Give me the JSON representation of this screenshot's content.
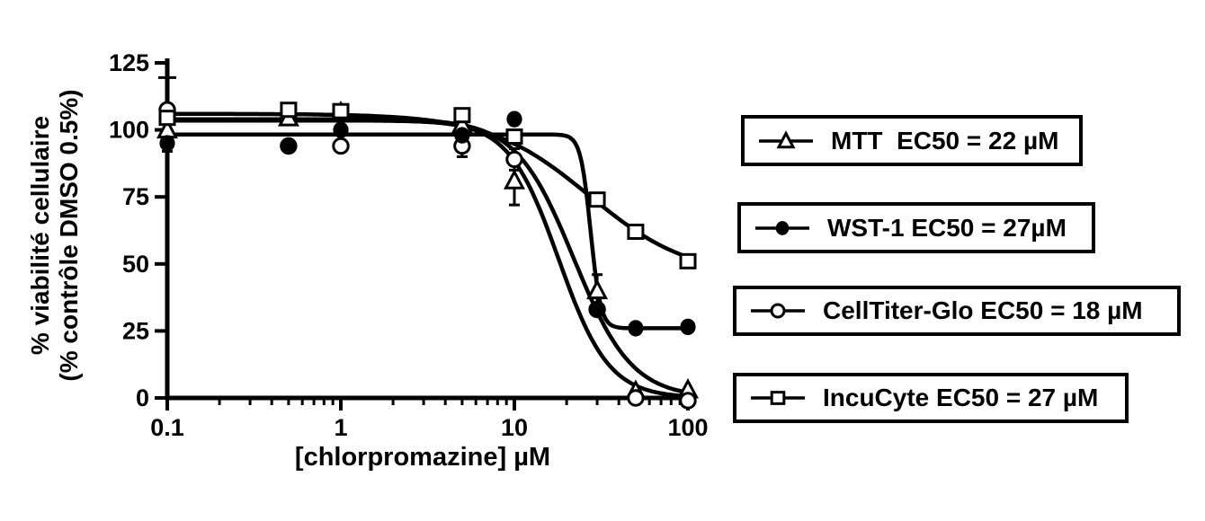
{
  "figure": {
    "background": "#ffffff",
    "ink_color": "#000000"
  },
  "chart_data": {
    "type": "line",
    "x_scale": "log",
    "grid": false,
    "title": "",
    "xlabel": "[chlorpromazine] µM",
    "ylabel_line1": "% viabilité cellulaire",
    "ylabel_line2": "(% contrôle DMSO 0.5%)",
    "xlim": [
      0.1,
      100
    ],
    "ylim": [
      0,
      125
    ],
    "x_ticks": [
      0.1,
      1,
      10,
      100
    ],
    "x_tick_labels": [
      "0.1",
      "1",
      "10",
      "100"
    ],
    "y_ticks": [
      0,
      25,
      50,
      75,
      100,
      125
    ],
    "y_tick_labels": [
      "0",
      "25",
      "50",
      "75",
      "100",
      "125"
    ],
    "y_minor_ticks": [
      119.5
    ],
    "x": [
      0.1,
      0.5,
      1,
      5,
      10,
      30,
      50,
      100
    ],
    "series": [
      {
        "name": "MTT",
        "marker": "triangle-open",
        "ec50_label": "MTT  EC50 = 22 µM",
        "ec50_um": 22,
        "values": [
          100,
          104.5,
          106.5,
          102,
          81,
          40,
          2.5,
          3
        ],
        "errors": [
          0,
          0,
          0,
          0,
          9,
          6,
          0,
          0
        ],
        "fit": {
          "top": 104,
          "bottom": 0,
          "ec50": 22,
          "hill": 2.6
        }
      },
      {
        "name": "WST-1",
        "marker": "circle-filled",
        "ec50_label": "WST-1 EC50 = 27µM",
        "ec50_um": 27,
        "values": [
          95,
          94,
          100,
          98,
          104,
          33,
          26,
          26.5
        ],
        "errors": [
          3,
          0,
          0,
          0,
          0,
          0,
          0,
          0
        ],
        "fit": {
          "top": 98.3,
          "bottom": 26,
          "ec50": 27.5,
          "hill": 15
        }
      },
      {
        "name": "CellTiter-Glo",
        "marker": "circle-open",
        "ec50_label": "CellTiter-Glo EC50 = 18 µM",
        "ec50_um": 18,
        "values": [
          107.5,
          94,
          94,
          94,
          89,
          33,
          0,
          -1
        ],
        "errors": [
          0,
          0,
          0,
          4,
          4,
          0,
          0,
          0
        ],
        "fit": {
          "top": 103.5,
          "bottom": 0,
          "ec50": 18,
          "hill": 3.0
        }
      },
      {
        "name": "IncuCyte",
        "marker": "square-open",
        "ec50_label": "IncuCyte EC50 = 27 µM",
        "ec50_um": 27,
        "values": [
          104.5,
          107.5,
          107,
          105.5,
          97.5,
          74,
          62,
          51
        ],
        "errors": [
          0,
          0,
          0,
          0,
          0,
          0,
          0,
          0
        ],
        "fit": {
          "top": 106,
          "bottom": 45,
          "ec50": 27,
          "hill": 1.5
        }
      }
    ]
  },
  "legend": {
    "entries": [
      {
        "label": "MTT  EC50 = 22 µM"
      },
      {
        "label": "WST-1 EC50 = 27µM"
      },
      {
        "label": "CellTiter-Glo EC50 = 18 µM"
      },
      {
        "label": "IncuCyte EC50 = 27 µM"
      }
    ]
  }
}
